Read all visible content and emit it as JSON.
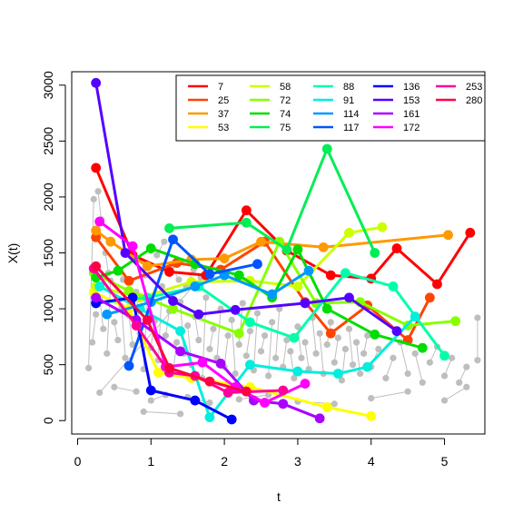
{
  "chart_data": {
    "type": "line",
    "title": "",
    "xlabel": "t",
    "ylabel": "X(t)",
    "xlim": [
      -0.08,
      5.55
    ],
    "ylim": [
      -120,
      3120
    ],
    "xticks": [
      0,
      1,
      2,
      3,
      4,
      5
    ],
    "yticks": [
      0,
      500,
      1000,
      1500,
      2000,
      2500,
      3000
    ],
    "legend_position": "top-right",
    "legend_columns": 5,
    "background_points_color": "#bebebe",
    "background_points": [
      [
        0.2,
        700
      ],
      [
        0.25,
        950
      ],
      [
        0.3,
        1100
      ],
      [
        0.35,
        820
      ],
      [
        0.4,
        600
      ],
      [
        0.45,
        1250
      ],
      [
        0.5,
        880
      ],
      [
        0.55,
        720
      ],
      [
        0.6,
        1020
      ],
      [
        0.65,
        560
      ],
      [
        0.7,
        940
      ],
      [
        0.75,
        680
      ],
      [
        0.8,
        1150
      ],
      [
        0.85,
        780
      ],
      [
        0.9,
        460
      ],
      [
        0.95,
        1080
      ],
      [
        1.0,
        650
      ],
      [
        1.05,
        890
      ],
      [
        1.1,
        540
      ],
      [
        1.15,
        1200
      ],
      [
        1.2,
        760
      ],
      [
        1.25,
        980
      ],
      [
        1.3,
        420
      ],
      [
        1.35,
        700
      ],
      [
        1.4,
        1060
      ],
      [
        1.45,
        600
      ],
      [
        1.5,
        850
      ],
      [
        1.55,
        500
      ],
      [
        1.6,
        930
      ],
      [
        1.65,
        720
      ],
      [
        1.7,
        380
      ],
      [
        1.75,
        1100
      ],
      [
        1.8,
        640
      ],
      [
        1.85,
        820
      ],
      [
        1.9,
        560
      ],
      [
        1.95,
        1000
      ],
      [
        2.0,
        480
      ],
      [
        2.05,
        760
      ],
      [
        2.1,
        900
      ],
      [
        2.15,
        420
      ],
      [
        2.2,
        680
      ],
      [
        2.25,
        1050
      ],
      [
        2.3,
        580
      ],
      [
        2.35,
        800
      ],
      [
        2.4,
        450
      ],
      [
        2.45,
        960
      ],
      [
        2.5,
        620
      ],
      [
        2.55,
        760
      ],
      [
        2.6,
        400
      ],
      [
        2.65,
        880
      ],
      [
        2.7,
        560
      ],
      [
        2.75,
        1000
      ],
      [
        2.8,
        480
      ],
      [
        2.85,
        720
      ],
      [
        2.9,
        620
      ],
      [
        2.95,
        380
      ],
      [
        3.0,
        840
      ],
      [
        3.05,
        560
      ],
      [
        3.1,
        700
      ],
      [
        3.15,
        460
      ],
      [
        3.2,
        920
      ],
      [
        3.25,
        600
      ],
      [
        3.3,
        780
      ],
      [
        3.35,
        420
      ],
      [
        3.4,
        680
      ],
      [
        3.45,
        880
      ],
      [
        3.5,
        520
      ],
      [
        3.55,
        740
      ],
      [
        3.6,
        360
      ],
      [
        3.65,
        640
      ],
      [
        3.7,
        820
      ],
      [
        3.75,
        500
      ],
      [
        3.8,
        700
      ],
      [
        3.85,
        420
      ],
      [
        3.9,
        600
      ],
      [
        3.95,
        760
      ],
      [
        4.0,
        480
      ],
      [
        4.1,
        640
      ],
      [
        4.2,
        380
      ],
      [
        4.3,
        560
      ],
      [
        4.4,
        700
      ],
      [
        4.5,
        420
      ],
      [
        4.6,
        600
      ],
      [
        4.7,
        340
      ],
      [
        4.8,
        520
      ],
      [
        4.9,
        660
      ],
      [
        5.0,
        400
      ],
      [
        5.1,
        560
      ],
      [
        5.2,
        340
      ],
      [
        5.3,
        480
      ],
      [
        5.45,
        920
      ],
      [
        5.45,
        540
      ],
      [
        0.15,
        470
      ],
      [
        0.22,
        1980
      ],
      [
        0.28,
        2050
      ],
      [
        0.32,
        1800
      ],
      [
        0.38,
        1500
      ],
      [
        0.42,
        1320
      ],
      [
        0.58,
        1340
      ],
      [
        0.62,
        1260
      ],
      [
        0.78,
        1450
      ],
      [
        0.92,
        1300
      ],
      [
        1.08,
        1480
      ],
      [
        1.18,
        1600
      ],
      [
        1.28,
        1380
      ],
      [
        1.38,
        1260
      ],
      [
        1.48,
        1200
      ],
      [
        1.58,
        1350
      ],
      [
        1.68,
        1280
      ],
      [
        0.3,
        250
      ],
      [
        0.5,
        300
      ],
      [
        0.8,
        260
      ],
      [
        1.0,
        180
      ],
      [
        1.2,
        230
      ],
      [
        1.5,
        210
      ],
      [
        1.8,
        160
      ],
      [
        2.2,
        190
      ],
      [
        2.6,
        230
      ],
      [
        3.0,
        170
      ],
      [
        3.5,
        150
      ],
      [
        4.0,
        200
      ],
      [
        4.5,
        260
      ],
      [
        5.0,
        180
      ],
      [
        5.3,
        300
      ],
      [
        0.9,
        80
      ],
      [
        1.4,
        60
      ]
    ],
    "series": [
      {
        "name": "7",
        "color": "#ff0000",
        "x": [
          0.25,
          0.75,
          1.25,
          1.75,
          2.3,
          2.85,
          3.45,
          4.0,
          4.35,
          4.9,
          5.35
        ],
        "y": [
          2260,
          1480,
          1330,
          1300,
          1880,
          1520,
          1300,
          1270,
          1540,
          1220,
          1680
        ]
      },
      {
        "name": "25",
        "color": "#ff4400",
        "x": [
          0.25,
          0.7,
          1.35,
          1.95,
          2.55,
          3.1,
          3.45,
          3.95,
          4.5,
          4.8
        ],
        "y": [
          1640,
          1250,
          1410,
          1350,
          1600,
          1060,
          780,
          1030,
          720,
          1100
        ]
      },
      {
        "name": "37",
        "color": "#ff9900",
        "x": [
          0.25,
          0.45,
          0.95,
          1.55,
          2.0,
          2.5,
          3.35,
          5.05
        ],
        "y": [
          1700,
          1600,
          1380,
          1440,
          1450,
          1600,
          1550,
          1660
        ]
      },
      {
        "name": "53",
        "color": "#ffff00",
        "x": [
          0.22,
          0.7,
          1.1,
          1.55,
          2.35,
          3.4,
          4.0
        ],
        "y": [
          1150,
          1000,
          430,
          380,
          300,
          120,
          40
        ]
      },
      {
        "name": "58",
        "color": "#ccff00",
        "x": [
          0.25,
          0.85,
          1.55,
          2.35,
          3.0,
          3.7,
          4.15
        ],
        "y": [
          1200,
          1100,
          1240,
          1250,
          1200,
          1680,
          1730
        ]
      },
      {
        "name": "72",
        "color": "#88ff00",
        "x": [
          0.22,
          0.7,
          1.3,
          2.2,
          2.75,
          3.25,
          3.85,
          4.5,
          5.15
        ],
        "y": [
          1320,
          1160,
          1000,
          780,
          1600,
          1050,
          1060,
          850,
          890
        ]
      },
      {
        "name": "74",
        "color": "#00dd00",
        "x": [
          0.25,
          0.55,
          1.0,
          1.6,
          2.2,
          2.65,
          3.0,
          3.4,
          4.05,
          4.7
        ],
        "y": [
          1280,
          1340,
          1540,
          1400,
          1300,
          1100,
          1530,
          1000,
          770,
          650
        ]
      },
      {
        "name": "75",
        "color": "#00ee55",
        "x": [
          1.25,
          2.3,
          2.85,
          3.4,
          4.05
        ],
        "y": [
          1720,
          1770,
          1530,
          2430,
          1500
        ]
      },
      {
        "name": "88",
        "color": "#00ffaa",
        "x": [
          0.25,
          0.95,
          1.65,
          2.35,
          2.95,
          3.65,
          4.3,
          5.0
        ],
        "y": [
          1050,
          1100,
          1200,
          880,
          740,
          1320,
          1200,
          580
        ]
      },
      {
        "name": "91",
        "color": "#00eedd",
        "x": [
          0.3,
          0.85,
          1.4,
          1.8,
          2.35,
          3.0,
          3.55,
          3.95,
          4.6
        ],
        "y": [
          1200,
          1000,
          800,
          30,
          500,
          440,
          420,
          480,
          930
        ]
      },
      {
        "name": "114",
        "color": "#0099ff",
        "x": [
          0.4,
          1.0,
          1.6,
          2.0,
          2.65,
          3.15
        ],
        "y": [
          950,
          1060,
          1200,
          1300,
          1130,
          1340
        ]
      },
      {
        "name": "117",
        "color": "#0055ff",
        "x": [
          0.7,
          1.3,
          1.8,
          2.45
        ],
        "y": [
          490,
          1620,
          1310,
          1400
        ]
      },
      {
        "name": "136",
        "color": "#0000ff",
        "x": [
          0.25,
          0.75,
          1.0,
          1.6,
          2.1
        ],
        "y": [
          1050,
          1100,
          270,
          180,
          10
        ]
      },
      {
        "name": "153",
        "color": "#5500ff",
        "x": [
          0.25,
          0.65,
          1.3,
          1.65,
          2.15,
          3.1,
          3.7,
          4.35
        ],
        "y": [
          3020,
          1500,
          1070,
          950,
          990,
          1050,
          1100,
          800
        ]
      },
      {
        "name": "161",
        "color": "#aa00ff",
        "x": [
          0.25,
          0.8,
          1.4,
          1.95,
          2.4,
          2.8,
          3.3
        ],
        "y": [
          1100,
          900,
          620,
          510,
          180,
          150,
          20
        ]
      },
      {
        "name": "172",
        "color": "#ff00ff",
        "x": [
          0.3,
          0.75,
          1.2,
          1.7,
          2.15,
          2.55,
          3.1
        ],
        "y": [
          1780,
          1560,
          480,
          520,
          300,
          160,
          330
        ]
      },
      {
        "name": "253",
        "color": "#ff0099",
        "x": [
          0.22,
          0.8,
          1.25,
          1.6,
          2.05,
          2.8
        ],
        "y": [
          1360,
          850,
          430,
          400,
          250,
          270
        ]
      },
      {
        "name": "280",
        "color": "#ff0044",
        "x": [
          0.25,
          0.95,
          1.25,
          1.8,
          2.3
        ],
        "y": [
          1380,
          900,
          470,
          350,
          260
        ]
      }
    ]
  }
}
